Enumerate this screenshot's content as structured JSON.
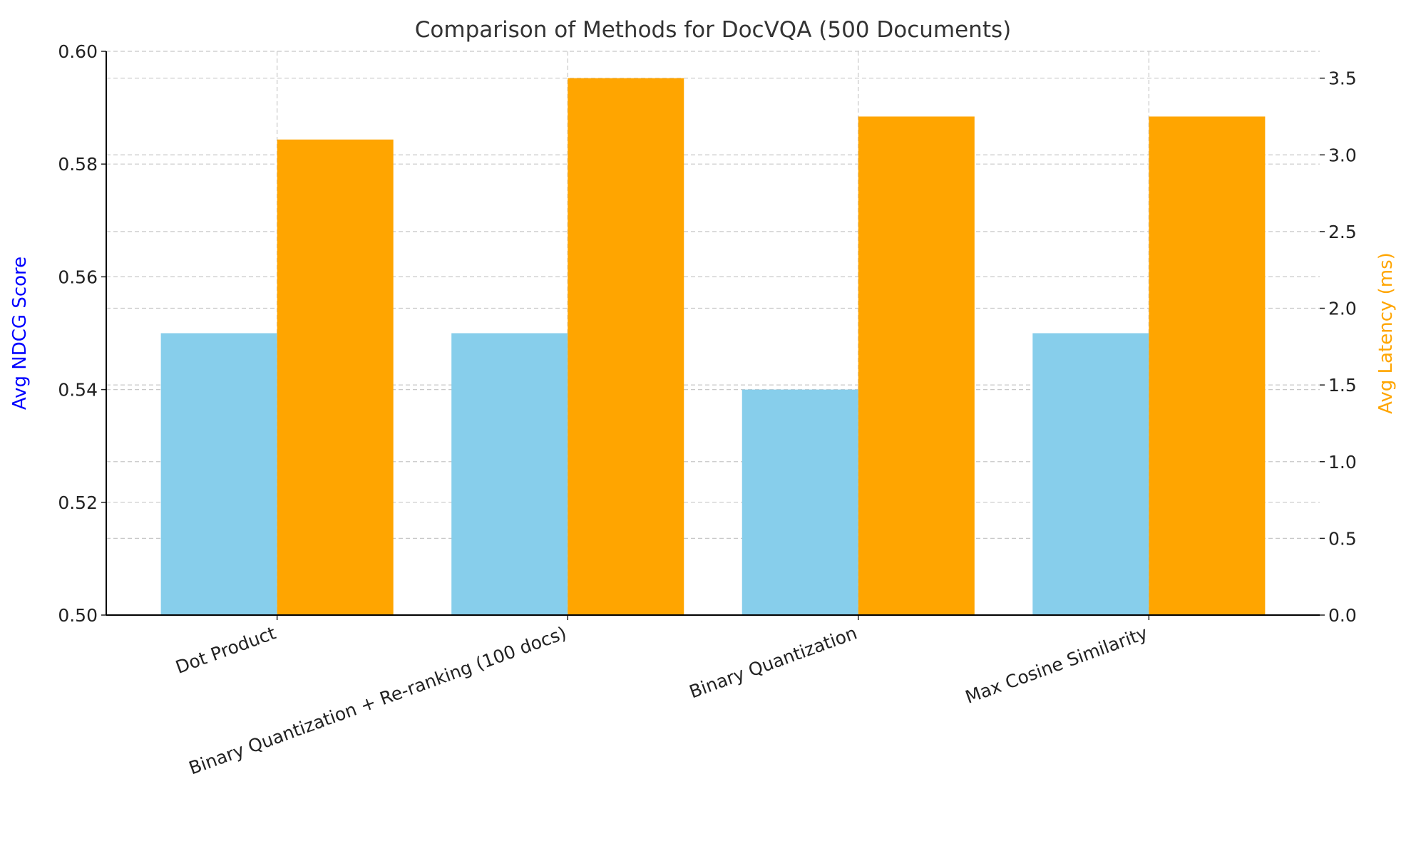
{
  "chart_data": {
    "type": "bar",
    "title": "Comparison of Methods for DocVQA (500 Documents)",
    "categories": [
      "Dot Product",
      "Binary Quantization + Re-ranking (100 docs)",
      "Binary Quantization",
      "Max Cosine Similarity"
    ],
    "series": [
      {
        "axis": "left",
        "color": "#87CEEB",
        "values": [
          0.55,
          0.55,
          0.54,
          0.55
        ]
      },
      {
        "axis": "right",
        "color": "#FFA500",
        "values": [
          3.1,
          3.5,
          3.25,
          3.25
        ]
      }
    ],
    "ylabel": "Avg NDCG Score",
    "ylabel_color": "#0000FF",
    "ylim": [
      0.5,
      0.6
    ],
    "yticks": [
      "0.50",
      "0.52",
      "0.54",
      "0.56",
      "0.58",
      "0.60"
    ],
    "y2label": "Avg Latency (ms)",
    "y2label_color": "#FFA500",
    "y2lim": [
      0,
      3.675
    ],
    "y2ticks": [
      "0.0",
      "0.5",
      "1.0",
      "1.5",
      "2.0",
      "2.5",
      "3.0",
      "3.5"
    ],
    "grid": true,
    "xtick_rotation": -20
  }
}
